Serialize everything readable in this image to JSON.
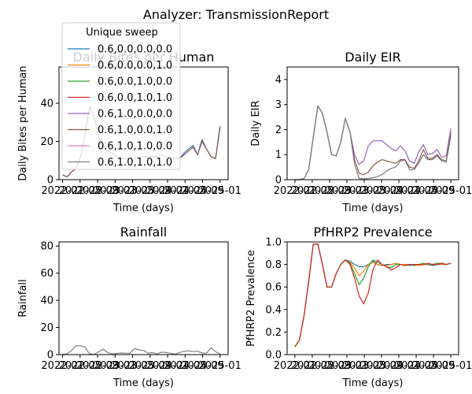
{
  "figure": {
    "suptitle": "Analyzer: TransmissionReport"
  },
  "legend": {
    "title": "Unique sweep",
    "entries": [
      {
        "name": "0.6,0.0,0.0,0.0",
        "color": "#1f77b4"
      },
      {
        "name": "0.6,0.0,0.0,1.0",
        "color": "#ff7f0e"
      },
      {
        "name": "0.6,0.0,1.0,0.0",
        "color": "#2ca02c"
      },
      {
        "name": "0.6,0.0,1.0,1.0",
        "color": "#d62728"
      },
      {
        "name": "0.6,1.0,0.0,0.0",
        "color": "#9467bd"
      },
      {
        "name": "0.6,1.0,0.0,1.0",
        "color": "#8c564b"
      },
      {
        "name": "0.6,1.0,1.0,0.0",
        "color": "#e377c2"
      },
      {
        "name": "0.6,1.0,1.0,1.0",
        "color": "#7f7f7f"
      }
    ]
  },
  "chart_data": [
    {
      "type": "line",
      "title": "Daily Bites per Human",
      "xlabel": "Time (days)",
      "ylabel": "Daily Bites per Human",
      "xticklabels": [
        "2022-01",
        "2022-05",
        "2022-09",
        "2023-01",
        "2023-05",
        "2023-09",
        "2024-01",
        "2024-05",
        "2024-09",
        "2025-01"
      ],
      "xlim": [
        -0.8,
        36.8
      ],
      "ylim": [
        0,
        59
      ],
      "yticks": [
        0,
        20,
        40
      ],
      "x": [
        0,
        1,
        2,
        3,
        4,
        5,
        6,
        7,
        8,
        9,
        10,
        11,
        12,
        13,
        14,
        15,
        16,
        17,
        18,
        19,
        20,
        21,
        22,
        23,
        24,
        25,
        26,
        27,
        28,
        29,
        30,
        31,
        32,
        33,
        34,
        35
      ],
      "series": [
        {
          "values": [
            2.5,
            1.5,
            4,
            6,
            12,
            24,
            38,
            33,
            22,
            18,
            15,
            14,
            12,
            11,
            11,
            11,
            11,
            12,
            12,
            12,
            12,
            12,
            13,
            12,
            12,
            11,
            11,
            14,
            16,
            18,
            13,
            20,
            16,
            12,
            11,
            28
          ]
        },
        {
          "values": [
            2.5,
            1.5,
            4,
            6,
            12,
            24,
            38,
            33,
            22,
            18,
            15,
            14,
            12,
            11,
            11,
            11,
            11,
            12,
            12,
            12,
            12,
            12,
            13,
            12,
            12,
            11,
            11,
            13,
            15,
            17,
            13,
            21,
            16,
            12,
            11,
            27
          ]
        }
      ]
    },
    {
      "type": "line",
      "title": "Daily EIR",
      "xlabel": "Time (days)",
      "ylabel": "Daily EIR",
      "xticklabels": [
        "2022-01",
        "2022-05",
        "2022-09",
        "2023-01",
        "2023-05",
        "2023-09",
        "2024-01",
        "2024-05",
        "2024-09",
        "2025-01"
      ],
      "xlim": [
        -1.7,
        35.7
      ],
      "ylim": [
        0,
        4.5
      ],
      "yticks": [
        0,
        1,
        2,
        3,
        4
      ],
      "x": [
        0,
        1,
        2,
        3,
        4,
        5,
        6,
        7,
        8,
        9,
        10,
        11,
        12,
        13,
        14,
        15,
        16,
        17,
        18,
        19,
        20,
        21,
        22,
        23,
        24,
        25,
        26,
        27,
        28,
        29,
        30,
        31,
        32,
        33,
        34
      ],
      "series": [
        {
          "values": [
            0,
            0,
            0.05,
            0.4,
            1.7,
            2.95,
            2.65,
            1.9,
            1.0,
            0.95,
            1.5,
            2.45,
            1.9,
            1.0,
            0.6,
            0.75,
            1.35,
            1.55,
            1.55,
            1.55,
            1.4,
            1.25,
            1.15,
            1.35,
            1.15,
            0.75,
            0.65,
            1.1,
            1.4,
            1.0,
            1.05,
            1.2,
            0.9,
            0.95,
            2.05
          ]
        },
        {
          "values": [
            0,
            0,
            0.05,
            0.4,
            1.7,
            2.95,
            2.65,
            1.9,
            1.0,
            0.95,
            1.5,
            2.45,
            1.9,
            0.8,
            0.25,
            0.2,
            0.3,
            0.55,
            0.7,
            0.8,
            0.75,
            0.7,
            0.65,
            0.8,
            0.8,
            0.5,
            0.45,
            0.75,
            1.2,
            0.85,
            0.85,
            1.0,
            0.8,
            0.75,
            1.9
          ]
        },
        {
          "values": [
            0,
            0,
            0.05,
            0.4,
            1.7,
            2.95,
            2.65,
            1.9,
            1.0,
            0.95,
            1.5,
            2.45,
            1.9,
            0.6,
            0.05,
            0.03,
            0.05,
            0.08,
            0.12,
            0.2,
            0.35,
            0.45,
            0.5,
            0.75,
            0.78,
            0.4,
            0.4,
            0.65,
            1.0,
            0.8,
            0.8,
            0.95,
            0.75,
            0.7,
            1.75
          ]
        }
      ]
    },
    {
      "type": "line",
      "title": "Rainfall",
      "xlabel": "Time (days)",
      "ylabel": "Rainfall",
      "xticklabels": [
        "2022-01",
        "2022-05",
        "2022-09",
        "2023-01",
        "2023-05",
        "2023-09",
        "2024-01",
        "2024-05",
        "2024-09",
        "2025-01"
      ],
      "xlim": [
        -0.8,
        36.8
      ],
      "ylim": [
        0,
        83
      ],
      "yticks": [
        0,
        20,
        40,
        60,
        80
      ],
      "x": [
        0,
        1,
        2,
        3,
        4,
        5,
        6,
        7,
        8,
        9,
        10,
        11,
        12,
        13,
        14,
        15,
        16,
        17,
        18,
        19,
        20,
        21,
        22,
        23,
        24,
        25,
        26,
        27,
        28,
        29,
        30,
        31,
        32,
        33,
        34,
        35
      ],
      "series": [
        {
          "values": [
            0.2,
            0.5,
            3,
            6.5,
            6.5,
            5.5,
            0.5,
            0.2,
            2,
            4,
            1.5,
            0.5,
            0.8,
            1.2,
            1,
            1,
            4.5,
            3.5,
            3,
            1,
            1.5,
            0.5,
            1.8,
            1.5,
            1,
            0.3,
            1.5,
            2.5,
            2.8,
            2.2,
            2.5,
            1.2,
            1,
            5,
            2.2,
            0.5
          ]
        }
      ]
    },
    {
      "type": "line",
      "title": "PfHRP2 Prevalence",
      "xlabel": "Time (days)",
      "ylabel": "PfHRP2 Prevalence",
      "xticklabels": [
        "2022-01",
        "2022-05",
        "2022-09",
        "2023-01",
        "2023-05",
        "2023-09",
        "2024-01",
        "2024-05",
        "2024-09",
        "2025-01"
      ],
      "xlim": [
        -1.7,
        35.7
      ],
      "ylim": [
        0,
        1.0
      ],
      "yticks": [
        0.0,
        0.2,
        0.4,
        0.6,
        0.8,
        1.0
      ],
      "x": [
        0,
        1,
        2,
        3,
        4,
        5,
        6,
        7,
        8,
        9,
        10,
        11,
        12,
        13,
        14,
        15,
        16,
        17,
        18,
        19,
        20,
        21,
        22,
        23,
        24,
        25,
        26,
        27,
        28,
        29,
        30,
        31,
        32,
        33,
        34
      ],
      "series": [
        {
          "values": [
            0.07,
            0.13,
            0.35,
            0.65,
            0.98,
            0.98,
            0.8,
            0.6,
            0.6,
            0.72,
            0.8,
            0.84,
            0.83,
            0.8,
            0.78,
            0.78,
            0.8,
            0.83,
            0.8,
            0.79,
            0.8,
            0.8,
            0.81,
            0.8,
            0.8,
            0.79,
            0.8,
            0.8,
            0.8,
            0.8,
            0.79,
            0.8,
            0.8,
            0.8,
            0.81
          ]
        },
        {
          "values": [
            0.07,
            0.13,
            0.35,
            0.65,
            0.98,
            0.98,
            0.8,
            0.6,
            0.6,
            0.72,
            0.8,
            0.84,
            0.82,
            0.77,
            0.7,
            0.74,
            0.8,
            0.82,
            0.8,
            0.79,
            0.79,
            0.8,
            0.81,
            0.8,
            0.8,
            0.8,
            0.8,
            0.79,
            0.8,
            0.8,
            0.8,
            0.81,
            0.8,
            0.8,
            0.81
          ]
        },
        {
          "values": [
            0.07,
            0.13,
            0.35,
            0.65,
            0.98,
            0.98,
            0.8,
            0.6,
            0.6,
            0.72,
            0.8,
            0.84,
            0.81,
            0.72,
            0.62,
            0.68,
            0.78,
            0.84,
            0.82,
            0.8,
            0.78,
            0.77,
            0.8,
            0.8,
            0.79,
            0.8,
            0.79,
            0.8,
            0.81,
            0.8,
            0.8,
            0.81,
            0.81,
            0.8,
            0.81
          ]
        },
        {
          "values": [
            0.07,
            0.13,
            0.35,
            0.65,
            0.98,
            0.98,
            0.8,
            0.6,
            0.6,
            0.72,
            0.8,
            0.84,
            0.8,
            0.68,
            0.52,
            0.45,
            0.55,
            0.75,
            0.84,
            0.8,
            0.78,
            0.75,
            0.77,
            0.8,
            0.79,
            0.8,
            0.8,
            0.8,
            0.8,
            0.81,
            0.8,
            0.8,
            0.81,
            0.8,
            0.81
          ]
        }
      ]
    }
  ]
}
